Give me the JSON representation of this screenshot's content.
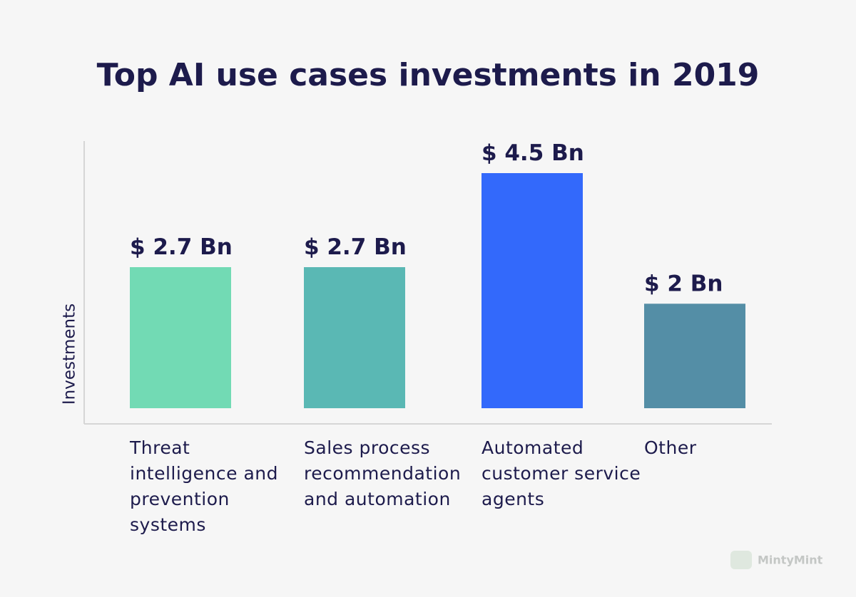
{
  "chart_data": {
    "type": "bar",
    "title": "Top AI use cases investments in 2019",
    "y_label": "Investments",
    "categories": [
      "Threat intelligence and prevention systems",
      "Sales process recommendation and automation",
      "Automated customer service agents",
      "Other"
    ],
    "values": [
      2.7,
      2.7,
      4.5,
      2
    ],
    "value_labels": [
      "$ 2.7 Bn",
      "$ 2.7 Bn",
      "$ 4.5 Bn",
      "$ 2 Bn"
    ],
    "colors": [
      "#72dab4",
      "#5ab8b4",
      "#3369fb",
      "#548ea6"
    ],
    "watermark": "MintyMint"
  }
}
